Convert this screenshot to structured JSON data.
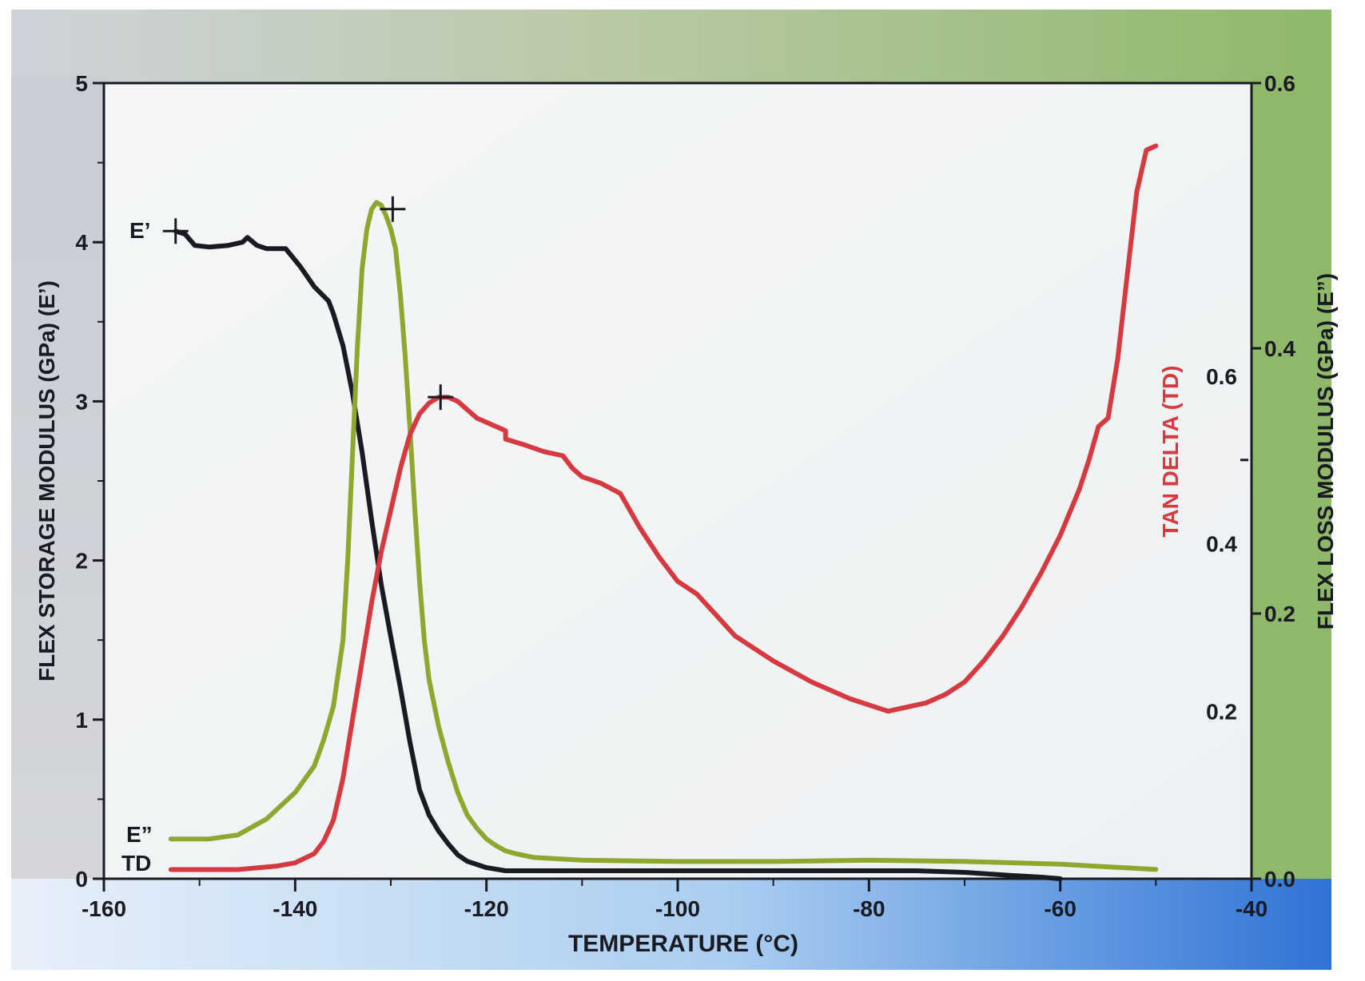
{
  "chart_data": {
    "type": "line",
    "title": "",
    "xlabel": "TEMPERATURE (°C)",
    "x_ticks": [
      -160,
      -140,
      -120,
      -100,
      -80,
      -60,
      -40
    ],
    "xlim": [
      -160,
      -40
    ],
    "y_left": {
      "label": "FLEX STORAGE MODULUS (GPa) (E’)",
      "ticks": [
        "0",
        "1",
        "2",
        "3",
        "4",
        "5"
      ],
      "lim": [
        0,
        5
      ]
    },
    "y_right_loss": {
      "label": "FLEX LOSS MODULUS (GPa) (E”)",
      "ticks": [
        "0.0",
        "0.2",
        "0.4",
        "0.6"
      ],
      "lim": [
        0,
        0.6
      ]
    },
    "y_right_tan": {
      "label": "TAN DELTA  (TD)",
      "ticks": [
        "0.2",
        "0.4",
        "0.6"
      ],
      "lim": [
        0,
        0.95
      ]
    },
    "series": [
      {
        "name": "E’",
        "color": "#1a1a22",
        "axis": "left",
        "x": [
          -152.5,
          -151.5,
          -150.5,
          -149,
          -147,
          -145.5,
          -145,
          -144,
          -143,
          -141,
          -139.5,
          -138,
          -136.5,
          -136,
          -135,
          -134,
          -133,
          -132,
          -131,
          -130,
          -129,
          -128,
          -127,
          -126,
          -125,
          -124,
          -123,
          -122,
          -120,
          -118,
          -110,
          -100,
          -90,
          -80,
          -75,
          -70,
          -65,
          -62,
          -60
        ],
        "y": [
          4.07,
          4.05,
          3.98,
          3.97,
          3.98,
          4.0,
          4.03,
          3.98,
          3.96,
          3.96,
          3.85,
          3.72,
          3.63,
          3.55,
          3.35,
          3.05,
          2.68,
          2.25,
          1.85,
          1.52,
          1.2,
          0.86,
          0.56,
          0.4,
          0.3,
          0.22,
          0.15,
          0.11,
          0.07,
          0.05,
          0.05,
          0.05,
          0.05,
          0.05,
          0.05,
          0.04,
          0.02,
          0.01,
          0.0
        ]
      },
      {
        "name": "E”",
        "color": "#8fa62f",
        "axis": "right_loss",
        "x": [
          -153,
          -149,
          -146,
          -143,
          -140,
          -138,
          -137,
          -136,
          -135,
          -134.5,
          -134,
          -133.5,
          -133,
          -132.5,
          -132,
          -131.5,
          -131,
          -130.5,
          -130,
          -129.5,
          -129,
          -128.5,
          -128,
          -127.5,
          -127,
          -126.5,
          -126,
          -125,
          -124,
          -123,
          -122,
          -121,
          -120,
          -119,
          -118,
          -117,
          -115,
          -110,
          -100,
          -90,
          -80,
          -70,
          -60,
          -55,
          -50
        ],
        "y": [
          0.03,
          0.03,
          0.033,
          0.045,
          0.065,
          0.085,
          0.105,
          0.13,
          0.18,
          0.24,
          0.32,
          0.4,
          0.46,
          0.49,
          0.505,
          0.51,
          0.508,
          0.5,
          0.49,
          0.475,
          0.44,
          0.395,
          0.34,
          0.28,
          0.225,
          0.18,
          0.15,
          0.115,
          0.088,
          0.065,
          0.048,
          0.038,
          0.03,
          0.025,
          0.021,
          0.019,
          0.016,
          0.014,
          0.013,
          0.013,
          0.014,
          0.013,
          0.011,
          0.009,
          0.007
        ]
      },
      {
        "name": "TD",
        "color": "#d43a3f",
        "axis": "right_tan",
        "x": [
          -153,
          -146,
          -142,
          -140,
          -138,
          -137,
          -136,
          -135,
          -134,
          -133,
          -132,
          -131,
          -130,
          -129,
          -128,
          -127,
          -126,
          -125,
          -124,
          -123,
          -122,
          -121,
          -120,
          -119,
          -118,
          -118,
          -116,
          -114,
          -112,
          -111,
          -110,
          -108,
          -106,
          -105,
          -104,
          -102,
          -100,
          -98,
          -96,
          -94,
          -90,
          -86,
          -82,
          -78,
          -74,
          -72,
          -70,
          -68,
          -66,
          -64,
          -62,
          -60,
          -58,
          -57,
          -56,
          -55,
          -54,
          -53,
          -52,
          -51,
          -50
        ],
        "y": [
          0.011,
          0.011,
          0.015,
          0.019,
          0.03,
          0.045,
          0.07,
          0.12,
          0.19,
          0.26,
          0.33,
          0.39,
          0.44,
          0.49,
          0.53,
          0.555,
          0.568,
          0.575,
          0.575,
          0.57,
          0.56,
          0.55,
          0.545,
          0.54,
          0.535,
          0.525,
          0.518,
          0.51,
          0.505,
          0.49,
          0.48,
          0.472,
          0.46,
          0.44,
          0.42,
          0.385,
          0.355,
          0.34,
          0.315,
          0.29,
          0.26,
          0.235,
          0.215,
          0.2,
          0.21,
          0.22,
          0.235,
          0.26,
          0.29,
          0.325,
          0.365,
          0.41,
          0.465,
          0.5,
          0.54,
          0.55,
          0.62,
          0.72,
          0.82,
          0.87,
          0.875
        ]
      }
    ],
    "markers": [
      {
        "series": "E’",
        "x": -152.5,
        "y": 4.07
      },
      {
        "series": "E”",
        "x": -129.8,
        "y": 0.505
      },
      {
        "series": "TD",
        "x": -124.8,
        "y": 0.575
      }
    ],
    "legend": [
      {
        "label": "E’",
        "series": "E’"
      },
      {
        "label": "E”",
        "series": "E”"
      },
      {
        "label": "TD",
        "series": "TD"
      }
    ]
  }
}
